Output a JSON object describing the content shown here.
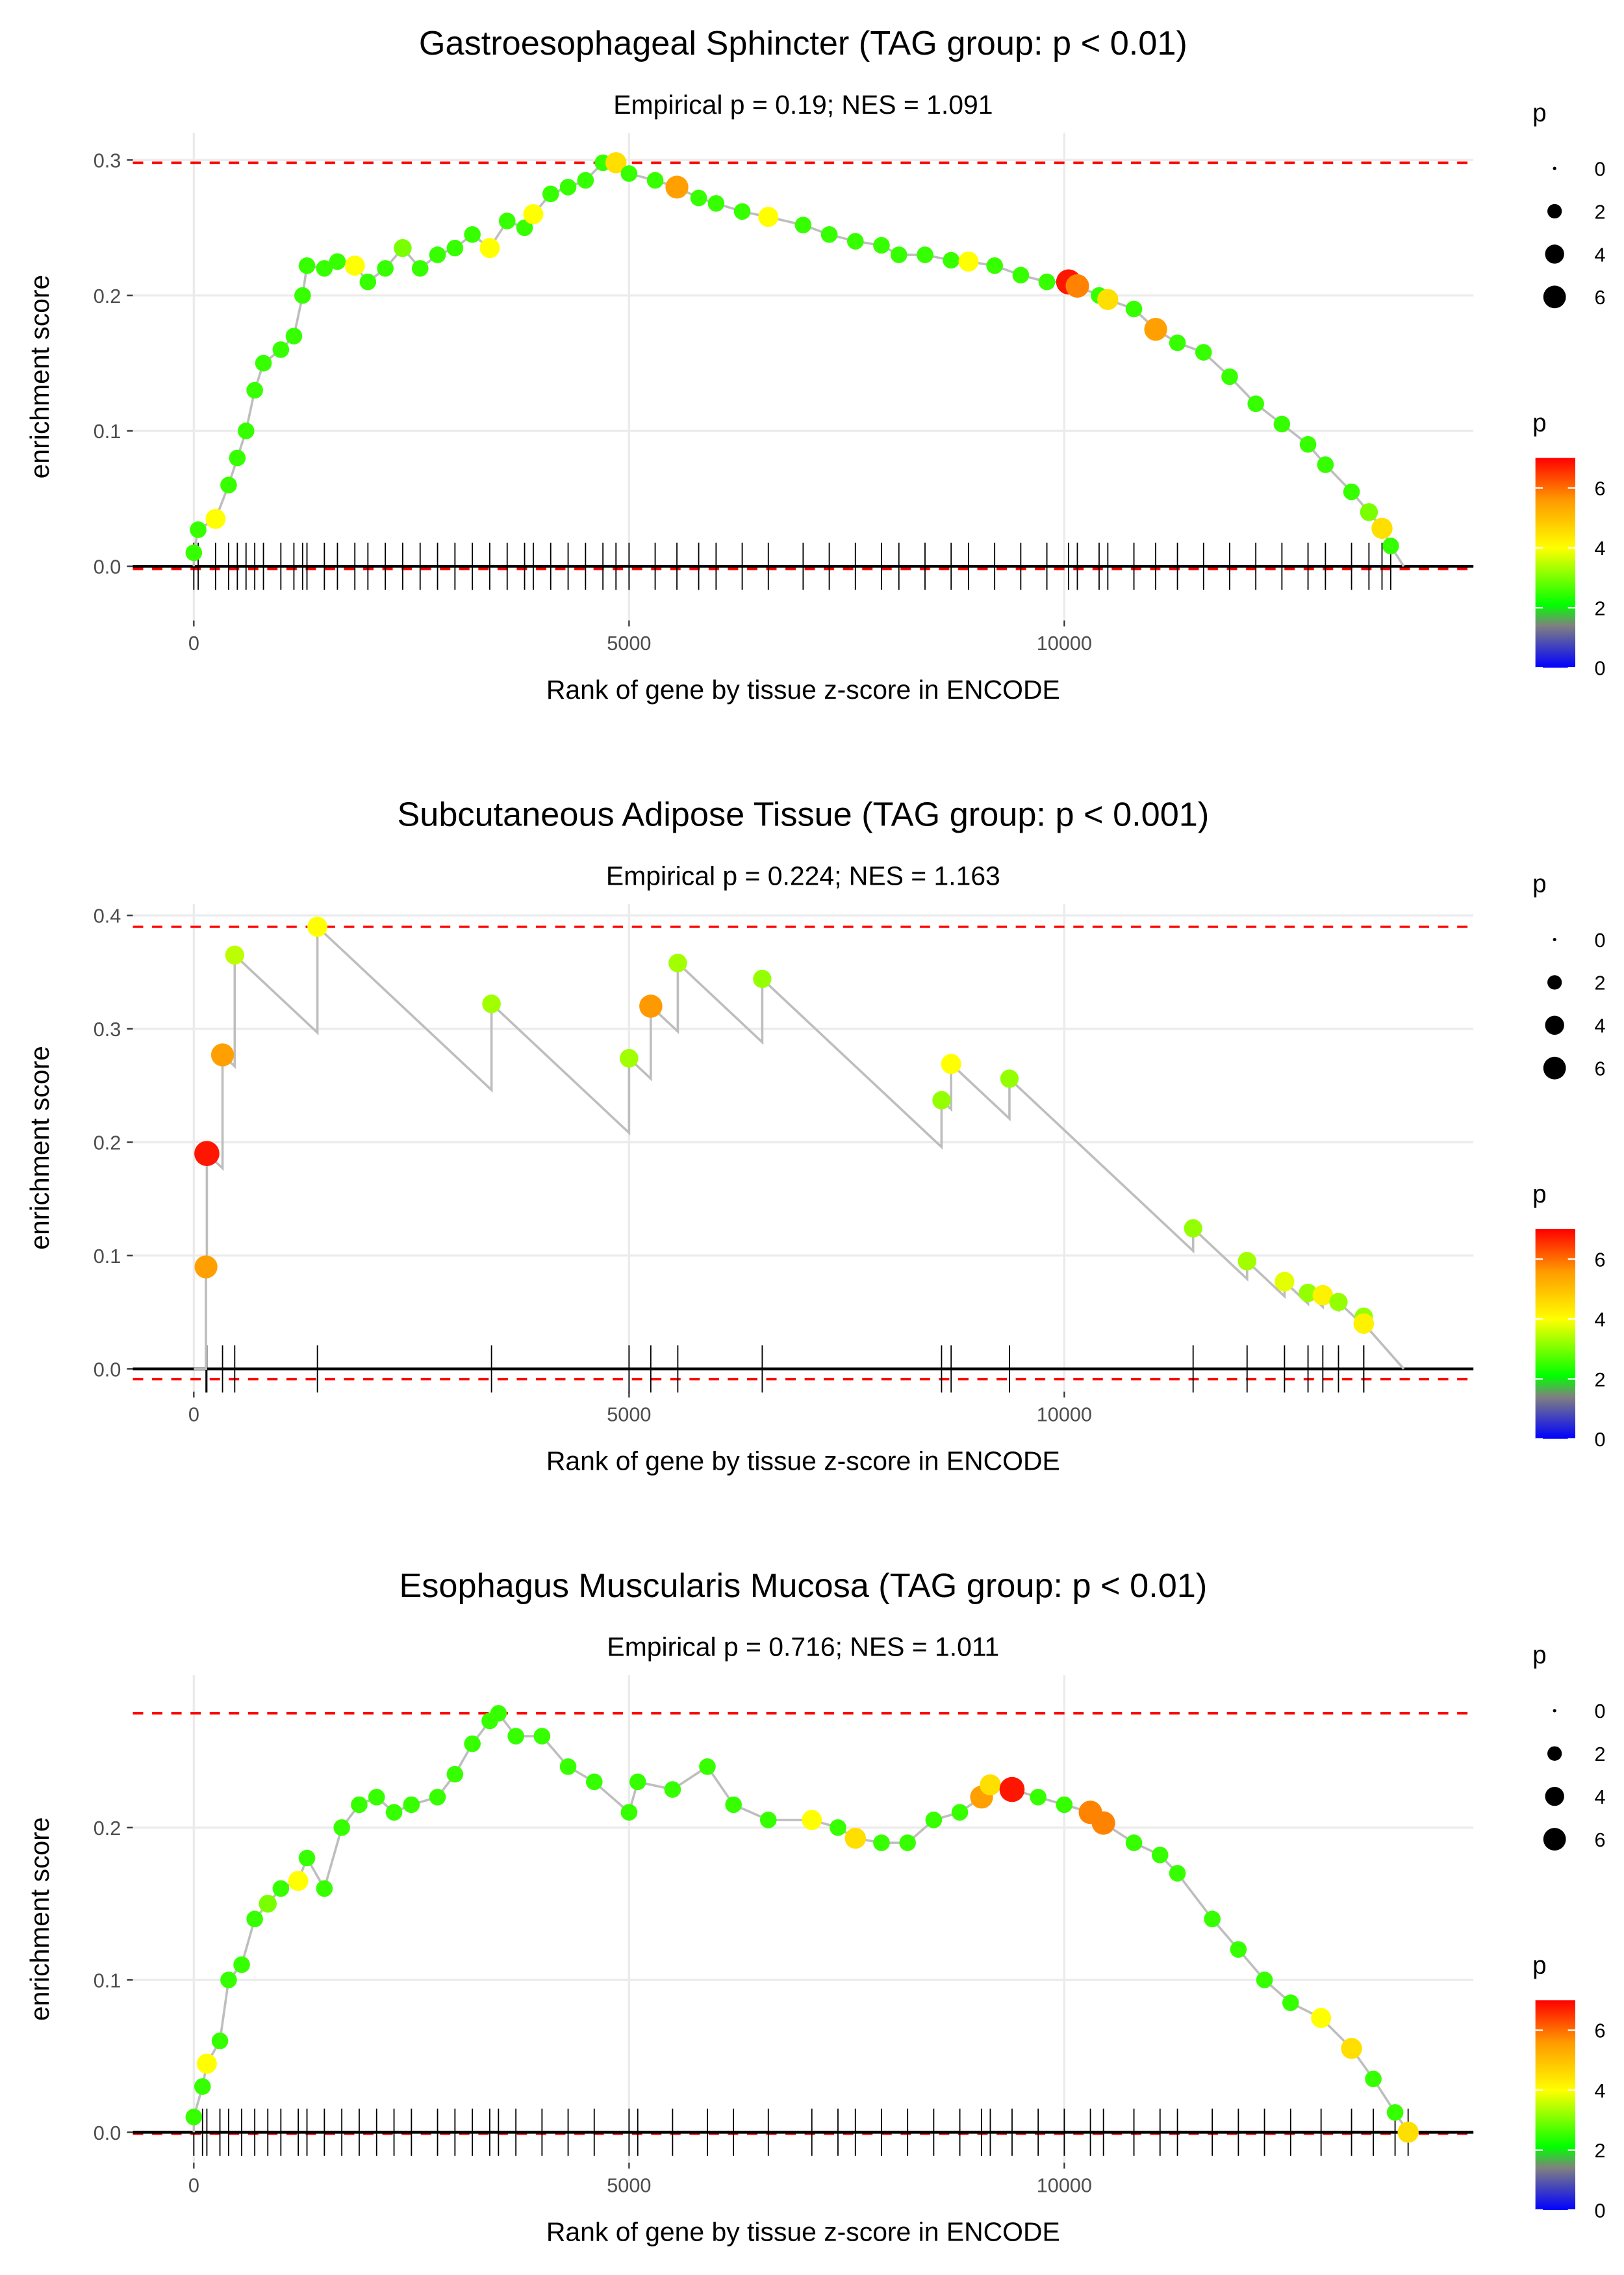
{
  "chart_data": [
    {
      "type": "scatter",
      "title": "Gastroesophageal Sphincter (TAG group: p < 0.01)",
      "subtitle": "Empirical p = 0.19; NES = 1.091",
      "xlabel": "Rank of gene by tissue z-score in ENCODE",
      "ylabel": "enrichment score",
      "xlim": [
        -700,
        14700
      ],
      "ylim": [
        -0.04,
        0.32
      ],
      "xticks": [
        0,
        5000,
        10000
      ],
      "yticks": [
        0.0,
        0.1,
        0.2,
        0.3
      ],
      "ytick_labels": [
        "0.0",
        "0.1",
        "0.2",
        "0.3"
      ],
      "max_es": 0.298,
      "min_es": -0.002,
      "end_rank": 13900,
      "points": [
        [
          0,
          0.01,
          2.5
        ],
        [
          50,
          0.027,
          2.5
        ],
        [
          250,
          0.035,
          4
        ],
        [
          400,
          0.06,
          2.5
        ],
        [
          500,
          0.08,
          2.5
        ],
        [
          600,
          0.1,
          2.5
        ],
        [
          700,
          0.13,
          2.5
        ],
        [
          800,
          0.15,
          2.5
        ],
        [
          1000,
          0.16,
          2.5
        ],
        [
          1150,
          0.17,
          2.5
        ],
        [
          1250,
          0.2,
          2.5
        ],
        [
          1300,
          0.222,
          2.5
        ],
        [
          1500,
          0.22,
          2.5
        ],
        [
          1650,
          0.225,
          2.5
        ],
        [
          1850,
          0.222,
          4
        ],
        [
          2000,
          0.21,
          2.5
        ],
        [
          2200,
          0.22,
          2.5
        ],
        [
          2400,
          0.235,
          3
        ],
        [
          2600,
          0.22,
          2.5
        ],
        [
          2800,
          0.23,
          2.5
        ],
        [
          3000,
          0.235,
          2.5
        ],
        [
          3200,
          0.245,
          2.5
        ],
        [
          3400,
          0.235,
          4
        ],
        [
          3600,
          0.255,
          2.5
        ],
        [
          3800,
          0.25,
          2.5
        ],
        [
          3900,
          0.26,
          4
        ],
        [
          4100,
          0.275,
          2.5
        ],
        [
          4300,
          0.28,
          2.5
        ],
        [
          4500,
          0.285,
          2.5
        ],
        [
          4700,
          0.298,
          2.5
        ],
        [
          4850,
          0.298,
          4.5
        ],
        [
          5000,
          0.29,
          2.5
        ],
        [
          5300,
          0.285,
          2.5
        ],
        [
          5550,
          0.28,
          5.5
        ],
        [
          5800,
          0.272,
          2.5
        ],
        [
          6000,
          0.268,
          2.5
        ],
        [
          6300,
          0.262,
          2.5
        ],
        [
          6600,
          0.258,
          4
        ],
        [
          7000,
          0.252,
          2.5
        ],
        [
          7300,
          0.245,
          2.5
        ],
        [
          7600,
          0.24,
          2.5
        ],
        [
          7900,
          0.237,
          2.5
        ],
        [
          8100,
          0.23,
          2.5
        ],
        [
          8400,
          0.23,
          2.5
        ],
        [
          8700,
          0.226,
          2.5
        ],
        [
          8900,
          0.225,
          4
        ],
        [
          9200,
          0.222,
          2.5
        ],
        [
          9500,
          0.215,
          2.5
        ],
        [
          9800,
          0.21,
          2.5
        ],
        [
          10050,
          0.21,
          6.8
        ],
        [
          10150,
          0.207,
          5.8
        ],
        [
          10400,
          0.2,
          2.5
        ],
        [
          10500,
          0.197,
          4.5
        ],
        [
          10800,
          0.19,
          2.5
        ],
        [
          11050,
          0.175,
          5.5
        ],
        [
          11300,
          0.165,
          2.5
        ],
        [
          11600,
          0.158,
          2.5
        ],
        [
          11900,
          0.14,
          2.5
        ],
        [
          12200,
          0.12,
          2.5
        ],
        [
          12500,
          0.105,
          2.5
        ],
        [
          12800,
          0.09,
          2.5
        ],
        [
          13000,
          0.075,
          2.5
        ],
        [
          13300,
          0.055,
          2.5
        ],
        [
          13500,
          0.04,
          3
        ],
        [
          13650,
          0.028,
          4.5
        ],
        [
          13750,
          0.015,
          2.5
        ]
      ]
    },
    {
      "type": "scatter",
      "title": "Subcutaneous Adipose Tissue (TAG group: p < 0.001)",
      "subtitle": "Empirical p = 0.224; NES = 1.163",
      "xlabel": "Rank of gene by tissue z-score in ENCODE",
      "ylabel": "enrichment score",
      "xlim": [
        -700,
        14700
      ],
      "ylim": [
        -0.02,
        0.41
      ],
      "xticks": [
        0,
        5000,
        10000
      ],
      "yticks": [
        0.0,
        0.1,
        0.2,
        0.3,
        0.4
      ],
      "ytick_labels": [
        "0.0",
        "0.1",
        "0.2",
        "0.3",
        "0.4"
      ],
      "max_es": 0.39,
      "min_es": -0.009,
      "end_rank": 13900,
      "points": [
        [
          140,
          0.09,
          5.5
        ],
        [
          150,
          0.19,
          6.8
        ],
        [
          330,
          0.277,
          5.5
        ],
        [
          470,
          0.365,
          3.5
        ],
        [
          1420,
          0.39,
          4
        ],
        [
          3420,
          0.322,
          3.3
        ],
        [
          5000,
          0.274,
          3.3
        ],
        [
          5250,
          0.32,
          5.6
        ],
        [
          5560,
          0.358,
          3.3
        ],
        [
          6530,
          0.344,
          3.2
        ],
        [
          8590,
          0.237,
          3.2
        ],
        [
          8700,
          0.269,
          4
        ],
        [
          9370,
          0.256,
          3.2
        ],
        [
          11480,
          0.124,
          3.2
        ],
        [
          12100,
          0.095,
          3.3
        ],
        [
          12530,
          0.077,
          3.8
        ],
        [
          12800,
          0.067,
          3.2
        ],
        [
          12970,
          0.065,
          4.2
        ],
        [
          13150,
          0.059,
          3.2
        ],
        [
          13440,
          0.046,
          3.2
        ],
        [
          13440,
          0.04,
          4.2
        ]
      ]
    },
    {
      "type": "scatter",
      "title": "Esophagus Muscularis Mucosa (TAG group: p < 0.01)",
      "subtitle": "Empirical p = 0.716; NES = 1.011",
      "xlabel": "Rank of gene by tissue z-score in ENCODE",
      "ylabel": "enrichment score",
      "xlim": [
        -700,
        14700
      ],
      "ylim": [
        -0.02,
        0.3
      ],
      "xticks": [
        0,
        5000,
        10000
      ],
      "yticks": [
        0.0,
        0.1,
        0.2
      ],
      "ytick_labels": [
        "0.0",
        "0.1",
        "0.2"
      ],
      "max_es": 0.275,
      "min_es": -0.001,
      "end_rank": 13950,
      "points": [
        [
          0,
          0.01,
          2.5
        ],
        [
          100,
          0.03,
          2.5
        ],
        [
          150,
          0.045,
          4
        ],
        [
          300,
          0.06,
          2.5
        ],
        [
          400,
          0.1,
          2.5
        ],
        [
          550,
          0.11,
          2.5
        ],
        [
          700,
          0.14,
          2.5
        ],
        [
          850,
          0.15,
          3
        ],
        [
          1000,
          0.16,
          2.5
        ],
        [
          1200,
          0.165,
          4
        ],
        [
          1300,
          0.18,
          2.5
        ],
        [
          1500,
          0.16,
          2.5
        ],
        [
          1700,
          0.2,
          2.5
        ],
        [
          1900,
          0.215,
          2.5
        ],
        [
          2100,
          0.22,
          2.5
        ],
        [
          2300,
          0.21,
          2.5
        ],
        [
          2500,
          0.215,
          2.5
        ],
        [
          2800,
          0.22,
          2.5
        ],
        [
          3000,
          0.235,
          2.5
        ],
        [
          3200,
          0.255,
          2.5
        ],
        [
          3400,
          0.27,
          2.5
        ],
        [
          3500,
          0.275,
          2.5
        ],
        [
          3700,
          0.26,
          2.5
        ],
        [
          4000,
          0.26,
          2.5
        ],
        [
          4300,
          0.24,
          2.5
        ],
        [
          4600,
          0.23,
          2.5
        ],
        [
          5000,
          0.21,
          2.5
        ],
        [
          5100,
          0.23,
          2.5
        ],
        [
          5500,
          0.225,
          2.5
        ],
        [
          5900,
          0.24,
          2.5
        ],
        [
          6200,
          0.215,
          2.5
        ],
        [
          6600,
          0.205,
          2.5
        ],
        [
          7100,
          0.205,
          4
        ],
        [
          7400,
          0.2,
          2.5
        ],
        [
          7600,
          0.193,
          4.5
        ],
        [
          7900,
          0.19,
          2.5
        ],
        [
          8200,
          0.19,
          2.5
        ],
        [
          8500,
          0.205,
          2.5
        ],
        [
          8800,
          0.21,
          2.5
        ],
        [
          9050,
          0.22,
          5.5
        ],
        [
          9150,
          0.228,
          4.5
        ],
        [
          9400,
          0.225,
          6.8
        ],
        [
          9700,
          0.22,
          2.5
        ],
        [
          10000,
          0.215,
          2.5
        ],
        [
          10300,
          0.21,
          5.8
        ],
        [
          10450,
          0.203,
          5.8
        ],
        [
          10800,
          0.19,
          2.5
        ],
        [
          11100,
          0.182,
          2.5
        ],
        [
          11300,
          0.17,
          2.5
        ],
        [
          11700,
          0.14,
          2.5
        ],
        [
          12000,
          0.12,
          2.5
        ],
        [
          12300,
          0.1,
          2.5
        ],
        [
          12600,
          0.085,
          2.5
        ],
        [
          12950,
          0.075,
          4
        ],
        [
          13300,
          0.055,
          4.5
        ],
        [
          13550,
          0.035,
          2.5
        ],
        [
          13800,
          0.013,
          2.5
        ],
        [
          13950,
          0.0,
          4.5
        ]
      ]
    }
  ],
  "legend": {
    "size_title": "p",
    "size_labels": [
      "0",
      "2",
      "4",
      "6"
    ],
    "size_values": [
      0,
      2,
      4,
      6
    ],
    "color_title": "p",
    "color_labels": [
      "0",
      "2",
      "4",
      "6"
    ],
    "color_values": [
      0,
      2,
      4,
      6
    ],
    "color_max": 7,
    "colors": {
      "low": "#0000ff",
      "mid_gray": "#808080",
      "green": "#00ff00",
      "yellow": "#ffff00",
      "orange": "#ff9900",
      "high": "#ff0000"
    }
  },
  "colors": {
    "line": "#bebebe",
    "max_line": "#ff0000",
    "grid": "#ebebeb",
    "rug": "#000000"
  }
}
